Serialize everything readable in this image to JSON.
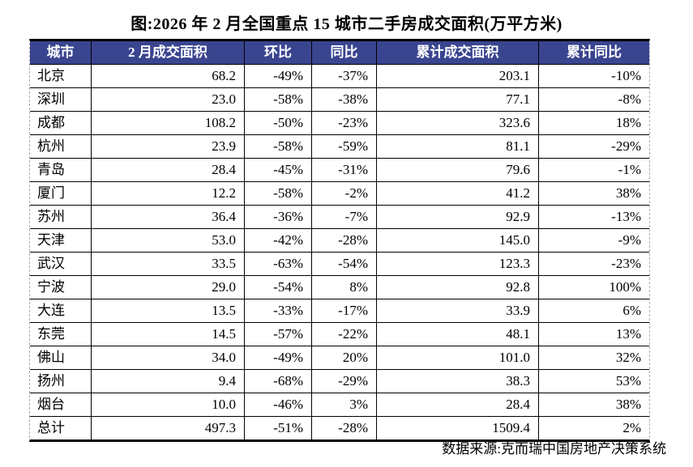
{
  "title": "图:2026 年 2 月全国重点 15 城市二手房成交面积(万平方米)",
  "source": "数据来源:克而瑞中国房地产决策系统",
  "colors": {
    "header_bg": "#3A4590",
    "header_text": "#FFFFFF",
    "border": "#000000"
  },
  "chart_data": {
    "type": "table",
    "title": "图:2026 年 2 月全国重点 15 城市二手房成交面积(万平方米)",
    "columns": [
      "城市",
      "2 月成交面积",
      "环比",
      "同比",
      "累计成交面积",
      "累计同比"
    ],
    "rows": [
      [
        "北京",
        "68.2",
        "-49%",
        "-37%",
        "203.1",
        "-10%"
      ],
      [
        "深圳",
        "23.0",
        "-58%",
        "-38%",
        "77.1",
        "-8%"
      ],
      [
        "成都",
        "108.2",
        "-50%",
        "-23%",
        "323.6",
        "18%"
      ],
      [
        "杭州",
        "23.9",
        "-58%",
        "-59%",
        "81.1",
        "-29%"
      ],
      [
        "青岛",
        "28.4",
        "-45%",
        "-31%",
        "79.6",
        "-1%"
      ],
      [
        "厦门",
        "12.2",
        "-58%",
        "-2%",
        "41.2",
        "38%"
      ],
      [
        "苏州",
        "36.4",
        "-36%",
        "-7%",
        "92.9",
        "-13%"
      ],
      [
        "天津",
        "53.0",
        "-42%",
        "-28%",
        "145.0",
        "-9%"
      ],
      [
        "武汉",
        "33.5",
        "-63%",
        "-54%",
        "123.3",
        "-23%"
      ],
      [
        "宁波",
        "29.0",
        "-54%",
        "8%",
        "92.8",
        "100%"
      ],
      [
        "大连",
        "13.5",
        "-33%",
        "-17%",
        "33.9",
        "6%"
      ],
      [
        "东莞",
        "14.5",
        "-57%",
        "-22%",
        "48.1",
        "13%"
      ],
      [
        "佛山",
        "34.0",
        "-49%",
        "20%",
        "101.0",
        "32%"
      ],
      [
        "扬州",
        "9.4",
        "-68%",
        "-29%",
        "38.3",
        "53%"
      ],
      [
        "烟台",
        "10.0",
        "-46%",
        "3%",
        "28.4",
        "38%"
      ],
      [
        "总计",
        "497.3",
        "-51%",
        "-28%",
        "1509.4",
        "2%"
      ]
    ]
  }
}
